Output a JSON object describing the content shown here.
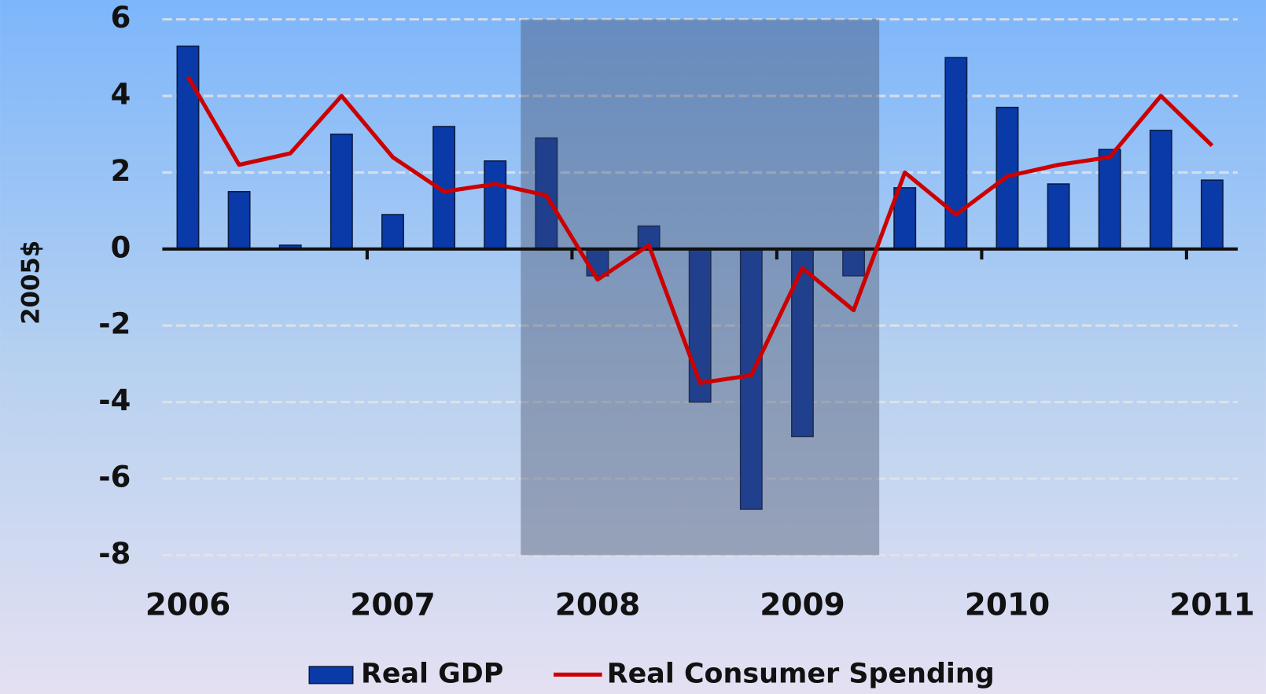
{
  "chart_data": {
    "type": "bar",
    "y_label": "2005$",
    "categories": [
      "2006",
      null,
      null,
      null,
      "2007",
      null,
      null,
      null,
      "2008",
      null,
      null,
      null,
      "2009",
      null,
      null,
      null,
      "2010",
      null,
      null,
      null,
      "2011"
    ],
    "series": [
      {
        "name": "Real GDP",
        "type": "bar",
        "color": "#0a3aa8",
        "values": [
          5.3,
          1.5,
          0.1,
          3.0,
          0.9,
          3.2,
          2.3,
          2.9,
          -0.7,
          0.6,
          -4.0,
          -6.8,
          -4.9,
          -0.7,
          1.6,
          5.0,
          3.7,
          1.7,
          2.6,
          3.1,
          1.8
        ]
      },
      {
        "name": "Real Consumer Spending",
        "type": "line",
        "color": "#cc0000",
        "values": [
          4.5,
          2.2,
          2.5,
          4.0,
          2.4,
          1.5,
          1.7,
          1.4,
          -0.8,
          0.1,
          -3.5,
          -3.3,
          -0.5,
          -1.6,
          2.0,
          0.9,
          1.9,
          2.2,
          2.4,
          4.0,
          2.7
        ]
      }
    ],
    "ylim": [
      -8,
      6
    ],
    "yticks": [
      -8,
      -6,
      -4,
      -2,
      0,
      2,
      4,
      6
    ],
    "grid": true,
    "legend": "bottom"
  }
}
